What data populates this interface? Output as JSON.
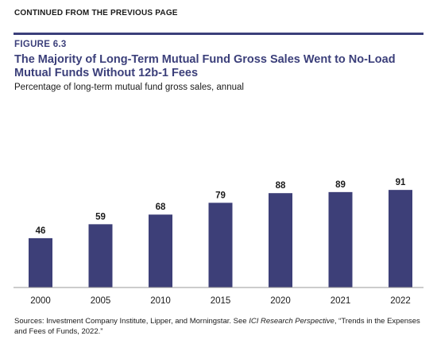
{
  "header": {
    "continued": "CONTINUED FROM THE PREVIOUS PAGE",
    "figure_label": "FIGURE 6.3",
    "title": "The Majority of Long-Term Mutual Fund Gross Sales Went to No-Load Mutual Funds Without 12b-1 Fees",
    "subtitle": "Percentage of long-term mutual fund gross sales, annual"
  },
  "colors": {
    "accent": "#3b3f7a",
    "bar": "#3d3f78"
  },
  "chart_data": {
    "type": "bar",
    "title": "The Majority of Long-Term Mutual Fund Gross Sales Went to No-Load Mutual Funds Without 12b-1 Fees",
    "subtitle": "Percentage of long-term mutual fund gross sales, annual",
    "categories": [
      "2000",
      "2005",
      "2010",
      "2015",
      "2020",
      "2021",
      "2022"
    ],
    "values": [
      46,
      59,
      68,
      79,
      88,
      89,
      91
    ],
    "xlabel": "",
    "ylabel": "",
    "ylim": [
      0,
      100
    ],
    "grid": false,
    "legend": "none",
    "data_labels": true
  },
  "source": {
    "prefix": "Sources: Investment Company Institute, Lipper, and Morningstar. See ",
    "italic": "ICI Research Perspective",
    "suffix": ", “Trends in the Expenses and Fees of Funds, 2022.”"
  }
}
